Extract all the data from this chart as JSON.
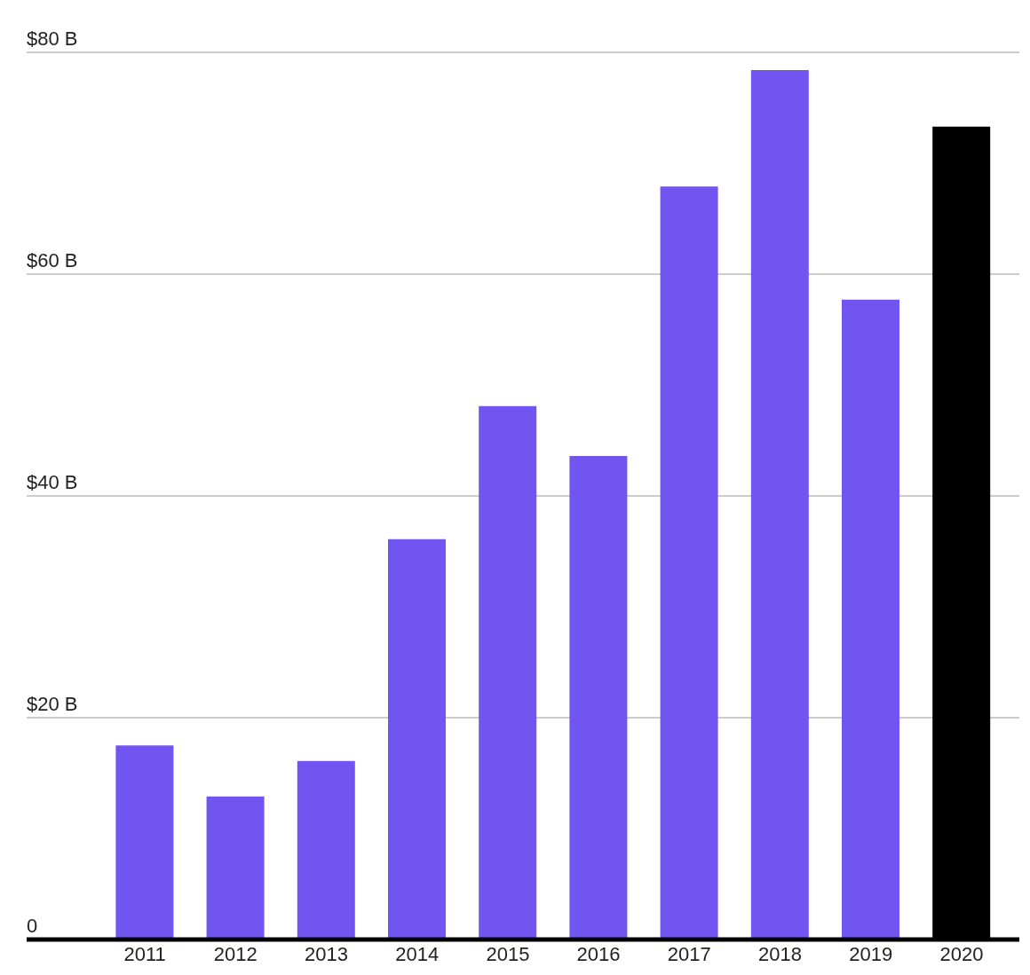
{
  "chart_data": {
    "type": "bar",
    "categories": [
      "2011",
      "2012",
      "2013",
      "2014",
      "2015",
      "2016",
      "2017",
      "2018",
      "2019",
      "2020"
    ],
    "values": [
      17.5,
      12.9,
      16.1,
      36.1,
      48.1,
      43.6,
      67.9,
      78.4,
      57.7,
      73.3
    ],
    "colors": [
      "#7055f0",
      "#7055f0",
      "#7055f0",
      "#7055f0",
      "#7055f0",
      "#7055f0",
      "#7055f0",
      "#7055f0",
      "#7055f0",
      "#000000"
    ],
    "ylim": [
      0,
      80
    ],
    "yticks": [
      {
        "value": 0,
        "label": "0"
      },
      {
        "value": 20,
        "label": "$20 B"
      },
      {
        "value": 40,
        "label": "$40 B"
      },
      {
        "value": 60,
        "label": "$60 B"
      },
      {
        "value": 80,
        "label": "$80 B"
      }
    ],
    "grid": "y"
  }
}
